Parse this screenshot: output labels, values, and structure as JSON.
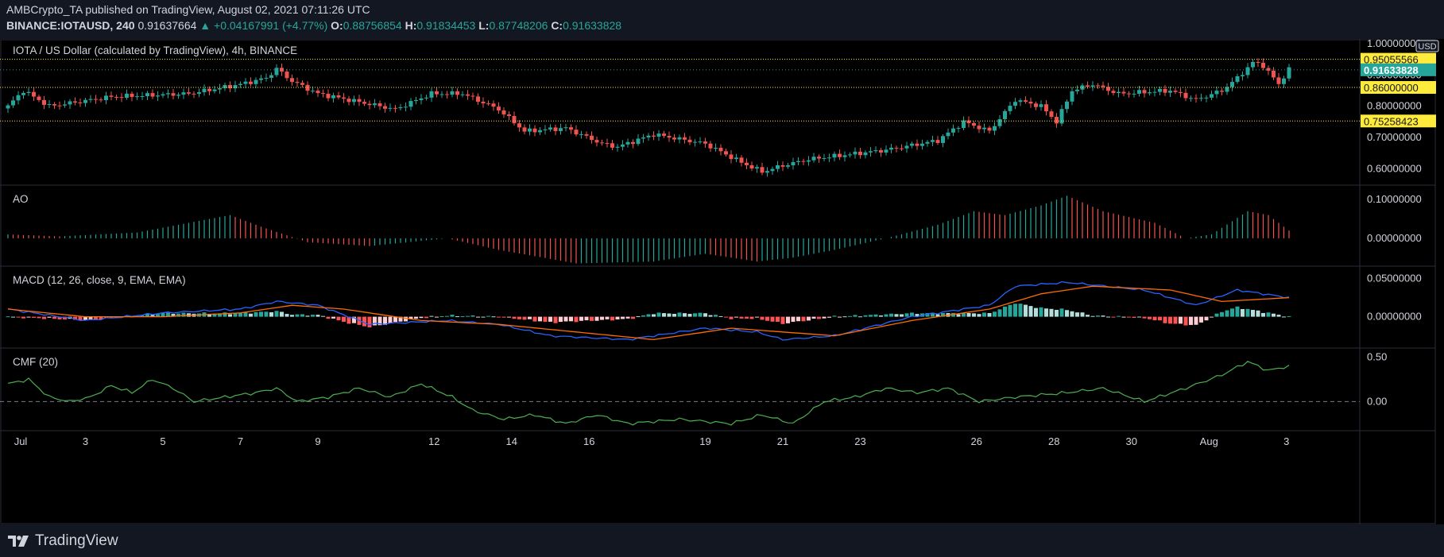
{
  "header": {
    "author": "AMBCrypto_TA",
    "published": "published on TradingView, August 02, 2021 07:11:26 UTC",
    "symbol": "BINANCE:IOTAUSD, 240",
    "last": "0.91637664",
    "change": "▲ +0.04167991 (+4.77%)",
    "o_label": "O:",
    "o_value": "0.88756854",
    "h_label": "H:",
    "h_value": "0.91834453",
    "l_label": "L:",
    "l_value": "0.87748206",
    "c_label": "C:",
    "c_value": "0.91633828"
  },
  "footer": {
    "brand": "TradingView"
  },
  "colors": {
    "up": "#26a69a",
    "down": "#ef5350",
    "macd": "#2962ff",
    "signal": "#ff6d00",
    "cmf": "#4caf50",
    "level": "#ffeb3b"
  },
  "chart_data": [
    {
      "type": "candlestick",
      "title": "IOTA / US Dollar (calculated by TradingView), 4h, BINANCE",
      "currency": "USD",
      "x_ticks": [
        "Jul",
        "3",
        "5",
        "7",
        "9",
        "12",
        "14",
        "16",
        "19",
        "21",
        "23",
        "26",
        "28",
        "30",
        "Aug",
        "3"
      ],
      "y_ticks": [
        "1.00000000",
        "0.90000000",
        "0.80000000",
        "0.70000000",
        "0.60000000"
      ],
      "ylim": [
        0.55,
        1.01
      ],
      "horizontal_levels": [
        {
          "value": 0.95,
          "label": "0.95055566"
        },
        {
          "value": 0.86,
          "label": "0.86000000"
        },
        {
          "value": 0.75258423,
          "label": "0.75258423"
        }
      ],
      "last_price": {
        "value": 0.91633828,
        "label": "0.91633828"
      },
      "close_anchors": [
        [
          0,
          0.8
        ],
        [
          3,
          0.85
        ],
        [
          8,
          0.8
        ],
        [
          20,
          0.83
        ],
        [
          35,
          0.84
        ],
        [
          45,
          0.87
        ],
        [
          50,
          0.89
        ],
        [
          52,
          0.92
        ],
        [
          55,
          0.88
        ],
        [
          60,
          0.84
        ],
        [
          75,
          0.79
        ],
        [
          82,
          0.84
        ],
        [
          88,
          0.84
        ],
        [
          95,
          0.79
        ],
        [
          100,
          0.72
        ],
        [
          108,
          0.73
        ],
        [
          115,
          0.68
        ],
        [
          118,
          0.67
        ],
        [
          125,
          0.71
        ],
        [
          135,
          0.68
        ],
        [
          142,
          0.62
        ],
        [
          146,
          0.59
        ],
        [
          150,
          0.61
        ],
        [
          155,
          0.63
        ],
        [
          170,
          0.66
        ],
        [
          180,
          0.69
        ],
        [
          185,
          0.75
        ],
        [
          190,
          0.72
        ],
        [
          195,
          0.82
        ],
        [
          200,
          0.8
        ],
        [
          203,
          0.75
        ],
        [
          206,
          0.85
        ],
        [
          210,
          0.87
        ],
        [
          215,
          0.84
        ],
        [
          225,
          0.85
        ],
        [
          230,
          0.82
        ],
        [
          235,
          0.85
        ],
        [
          238,
          0.89
        ],
        [
          241,
          0.94
        ],
        [
          243,
          0.93
        ],
        [
          246,
          0.87
        ],
        [
          248,
          0.92
        ]
      ]
    },
    {
      "type": "bar",
      "title": "AO",
      "y_ticks": [
        "0.10000000",
        "0.00000000"
      ],
      "ylim": [
        -0.07,
        0.125
      ],
      "anchors": [
        [
          0,
          0.01
        ],
        [
          10,
          0.005
        ],
        [
          25,
          0.015
        ],
        [
          35,
          0.04
        ],
        [
          43,
          0.06
        ],
        [
          49,
          0.03
        ],
        [
          58,
          -0.01
        ],
        [
          70,
          -0.02
        ],
        [
          85,
          0.0
        ],
        [
          95,
          -0.03
        ],
        [
          110,
          -0.065
        ],
        [
          125,
          -0.06
        ],
        [
          135,
          -0.04
        ],
        [
          145,
          -0.06
        ],
        [
          152,
          -0.05
        ],
        [
          160,
          -0.03
        ],
        [
          170,
          0.0
        ],
        [
          180,
          0.035
        ],
        [
          187,
          0.07
        ],
        [
          193,
          0.06
        ],
        [
          200,
          0.085
        ],
        [
          205,
          0.11
        ],
        [
          212,
          0.07
        ],
        [
          222,
          0.04
        ],
        [
          228,
          0.0
        ],
        [
          233,
          0.01
        ],
        [
          240,
          0.07
        ],
        [
          244,
          0.06
        ],
        [
          248,
          0.02
        ]
      ]
    },
    {
      "type": "line",
      "title": "MACD (12, 26, close, 9, EMA, EMA)",
      "y_ticks": [
        "0.05000000",
        "0.00000000"
      ],
      "ylim": [
        -0.04,
        0.06
      ],
      "series": [
        {
          "name": "MACD",
          "anchors": [
            [
              0,
              0.01
            ],
            [
              15,
              -0.005
            ],
            [
              30,
              0.005
            ],
            [
              45,
              0.01
            ],
            [
              52,
              0.02
            ],
            [
              60,
              0.015
            ],
            [
              70,
              -0.01
            ],
            [
              85,
              -0.005
            ],
            [
              95,
              -0.01
            ],
            [
              105,
              -0.025
            ],
            [
              120,
              -0.03
            ],
            [
              135,
              -0.015
            ],
            [
              145,
              -0.02
            ],
            [
              150,
              -0.03
            ],
            [
              160,
              -0.025
            ],
            [
              175,
              0.0
            ],
            [
              190,
              0.015
            ],
            [
              195,
              0.04
            ],
            [
              205,
              0.045
            ],
            [
              220,
              0.035
            ],
            [
              230,
              0.015
            ],
            [
              238,
              0.035
            ],
            [
              248,
              0.025
            ]
          ]
        },
        {
          "name": "Signal",
          "anchors": [
            [
              0,
              0.01
            ],
            [
              15,
              0.0
            ],
            [
              30,
              0.0
            ],
            [
              45,
              0.005
            ],
            [
              55,
              0.015
            ],
            [
              65,
              0.01
            ],
            [
              80,
              -0.005
            ],
            [
              95,
              -0.01
            ],
            [
              110,
              -0.02
            ],
            [
              125,
              -0.03
            ],
            [
              140,
              -0.015
            ],
            [
              150,
              -0.02
            ],
            [
              160,
              -0.025
            ],
            [
              175,
              -0.005
            ],
            [
              190,
              0.01
            ],
            [
              200,
              0.03
            ],
            [
              210,
              0.04
            ],
            [
              225,
              0.035
            ],
            [
              235,
              0.02
            ],
            [
              248,
              0.025
            ]
          ]
        }
      ]
    },
    {
      "type": "line",
      "title": "CMF (20)",
      "y_ticks": [
        "0.50",
        "0.00"
      ],
      "ylim": [
        -0.32,
        0.55
      ],
      "series": [
        {
          "name": "CMF",
          "anchors": [
            [
              0,
              0.2
            ],
            [
              4,
              0.25
            ],
            [
              8,
              0.05
            ],
            [
              12,
              0.0
            ],
            [
              16,
              0.05
            ],
            [
              20,
              0.18
            ],
            [
              24,
              0.1
            ],
            [
              28,
              0.25
            ],
            [
              32,
              0.15
            ],
            [
              36,
              0.0
            ],
            [
              42,
              0.05
            ],
            [
              48,
              0.1
            ],
            [
              52,
              0.15
            ],
            [
              56,
              0.0
            ],
            [
              62,
              0.05
            ],
            [
              68,
              0.15
            ],
            [
              74,
              0.05
            ],
            [
              80,
              0.2
            ],
            [
              86,
              0.05
            ],
            [
              90,
              -0.1
            ],
            [
              96,
              -0.2
            ],
            [
              102,
              -0.15
            ],
            [
              108,
              -0.25
            ],
            [
              114,
              -0.15
            ],
            [
              120,
              -0.25
            ],
            [
              130,
              -0.2
            ],
            [
              140,
              -0.25
            ],
            [
              146,
              -0.15
            ],
            [
              152,
              -0.25
            ],
            [
              158,
              0.0
            ],
            [
              164,
              0.05
            ],
            [
              170,
              0.15
            ],
            [
              176,
              0.1
            ],
            [
              182,
              0.15
            ],
            [
              188,
              0.0
            ],
            [
              195,
              0.05
            ],
            [
              205,
              0.1
            ],
            [
              212,
              0.15
            ],
            [
              220,
              0.0
            ],
            [
              228,
              0.15
            ],
            [
              235,
              0.3
            ],
            [
              240,
              0.45
            ],
            [
              244,
              0.35
            ],
            [
              248,
              0.4
            ]
          ]
        }
      ]
    }
  ]
}
